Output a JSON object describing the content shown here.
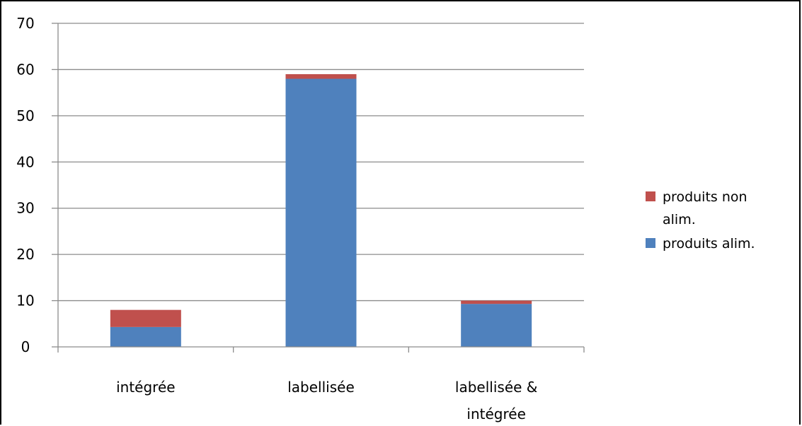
{
  "chart_data": {
    "type": "bar",
    "stacked": true,
    "categories": [
      [
        "intégrée"
      ],
      [
        "labellisée"
      ],
      [
        "labellisée &",
        "intégrée"
      ]
    ],
    "series": [
      {
        "name": "produits alim.",
        "values": [
          4.3,
          58,
          9.3
        ],
        "color": "#4f81bd"
      },
      {
        "name": "produits non alim.",
        "values": [
          3.7,
          1,
          0.7
        ],
        "color": "#c0504d"
      }
    ],
    "legend": {
      "placement": "right",
      "entries": [
        {
          "series": 1,
          "lines": [
            "produits non",
            "alim."
          ]
        },
        {
          "series": 0,
          "lines": [
            "produits alim."
          ]
        }
      ]
    },
    "yticks": [
      0,
      10,
      20,
      30,
      40,
      50,
      60,
      70
    ],
    "ylim": [
      0,
      70
    ],
    "grid": true,
    "title": "",
    "xlabel": "",
    "ylabel": ""
  }
}
